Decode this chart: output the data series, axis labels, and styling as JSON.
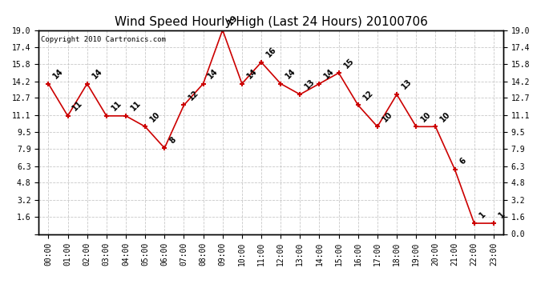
{
  "title": "Wind Speed Hourly High (Last 24 Hours) 20100706",
  "copyright": "Copyright 2010 Cartronics.com",
  "hours": [
    "00:00",
    "01:00",
    "02:00",
    "03:00",
    "04:00",
    "05:00",
    "06:00",
    "07:00",
    "08:00",
    "09:00",
    "10:00",
    "11:00",
    "12:00",
    "13:00",
    "14:00",
    "15:00",
    "16:00",
    "17:00",
    "18:00",
    "19:00",
    "20:00",
    "21:00",
    "22:00",
    "23:00"
  ],
  "wind": [
    14,
    11,
    14,
    11,
    11,
    10,
    8,
    12,
    14,
    19,
    14,
    16,
    14,
    13,
    14,
    15,
    12,
    10,
    13,
    10,
    10,
    6,
    1,
    1
  ],
  "line_color": "#cc0000",
  "bg_color": "#ffffff",
  "grid_color": "#bbbbbb",
  "title_fontsize": 11,
  "copyright_fontsize": 6.5,
  "yticks": [
    0.0,
    1.6,
    3.2,
    4.8,
    6.3,
    7.9,
    9.5,
    11.1,
    12.7,
    14.2,
    15.8,
    17.4,
    19.0
  ],
  "ylim": [
    0.0,
    19.0
  ],
  "label_fontsize": 7,
  "tick_fontsize": 7
}
